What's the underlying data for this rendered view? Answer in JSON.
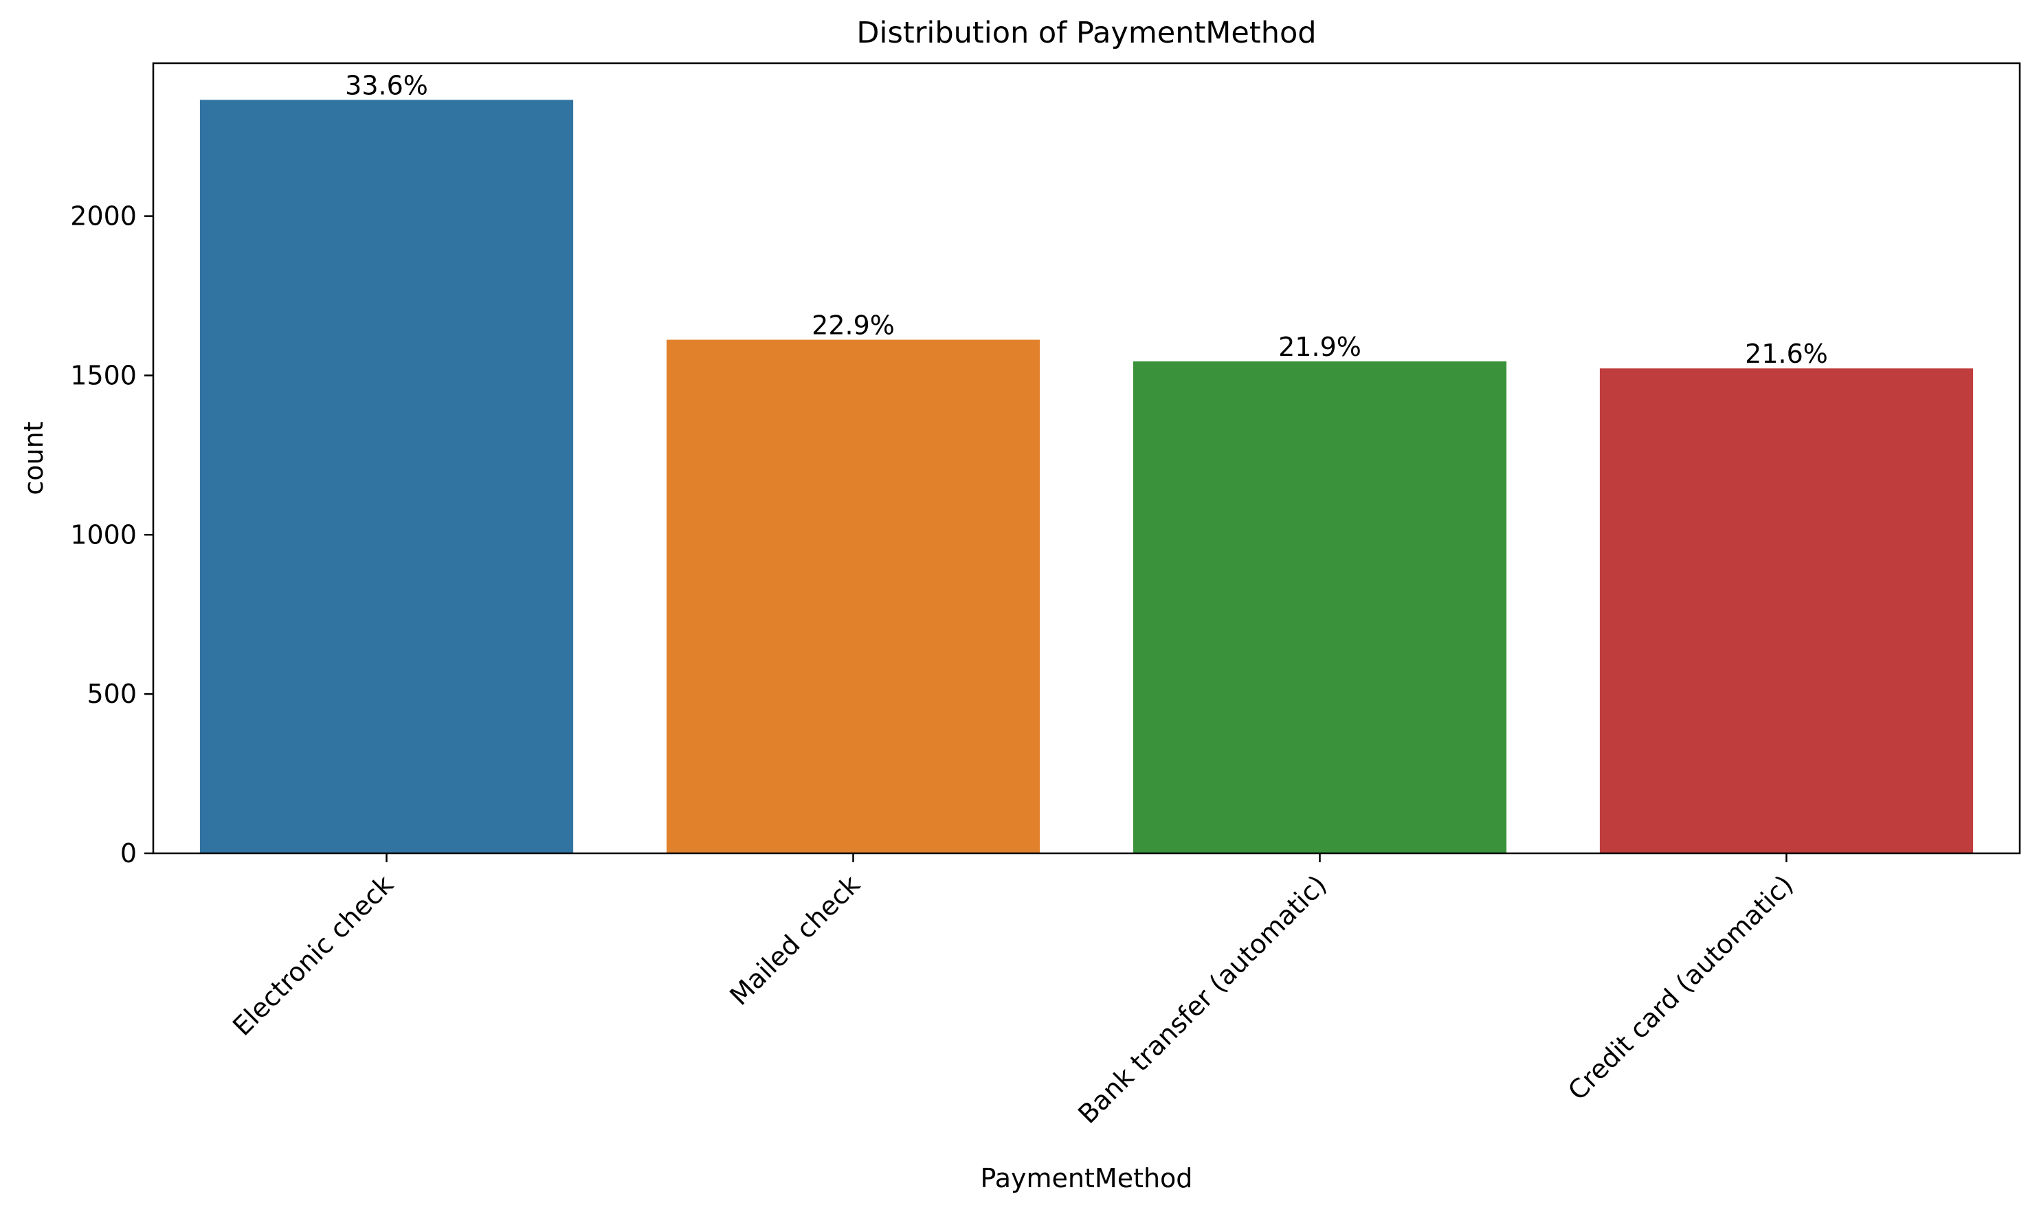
{
  "chart_data": {
    "type": "bar",
    "title": "Distribution of PaymentMethod",
    "xlabel": "PaymentMethod",
    "ylabel": "count",
    "categories": [
      "Electronic check",
      "Mailed check",
      "Bank transfer (automatic)",
      "Credit card (automatic)"
    ],
    "values": [
      2365,
      1612,
      1544,
      1522
    ],
    "data_labels": [
      "33.6%",
      "22.9%",
      "21.9%",
      "21.6%"
    ],
    "colors": [
      "#3274a1",
      "#e1812c",
      "#3a923a",
      "#c03d3e"
    ],
    "ylim": [
      0,
      2480
    ],
    "yticks": [
      0,
      500,
      1000,
      1500,
      2000
    ],
    "grid": false,
    "legend": "none"
  }
}
